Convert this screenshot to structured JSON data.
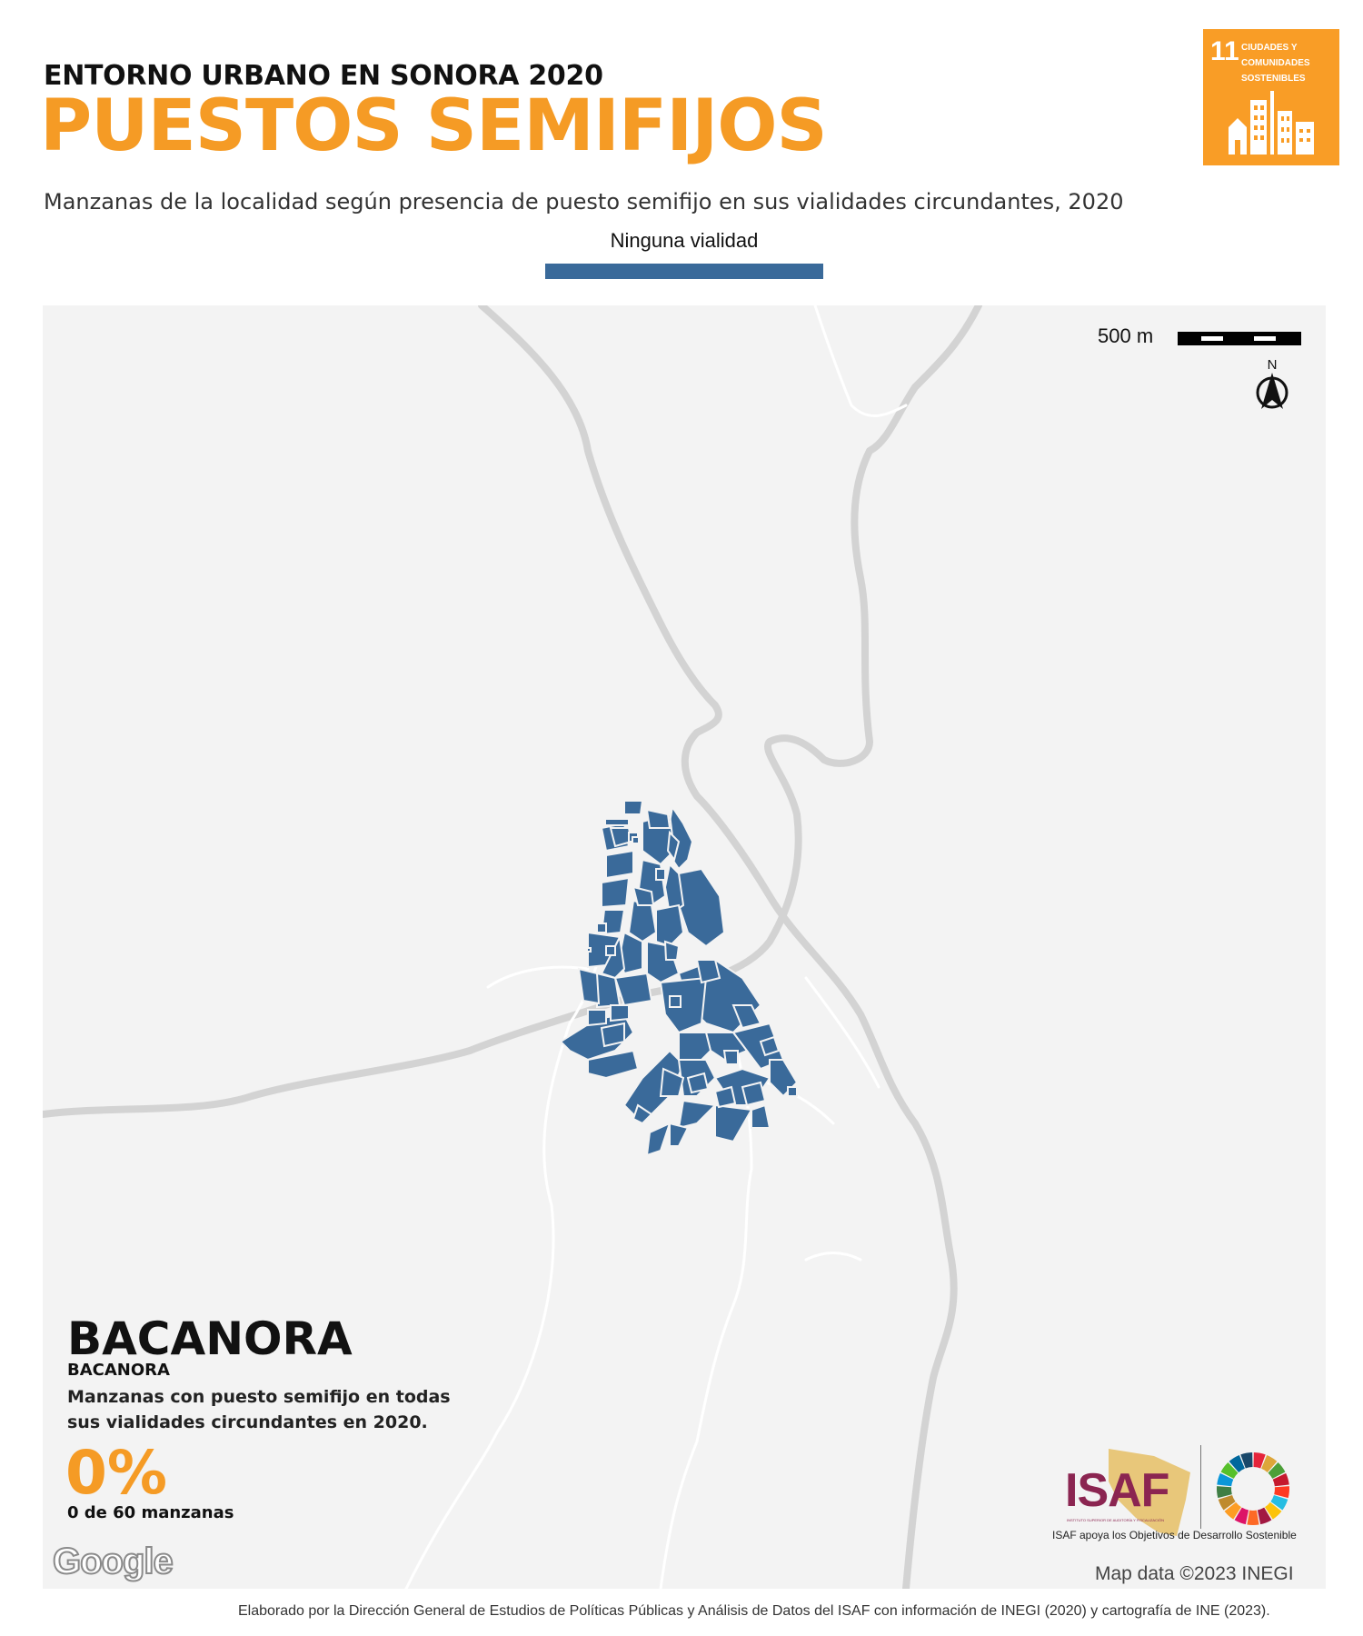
{
  "header": {
    "subtitle": "ENTORNO URBANO EN SONORA 2020",
    "title": "PUESTOS SEMIFIJOS",
    "description": "Manzanas de la localidad según presencia de puesto semifijo en sus vialidades circundantes, 2020"
  },
  "legend": {
    "label": "Ninguna vialidad",
    "color": "#3A6A9A"
  },
  "sdg_badge": {
    "number": "11",
    "text": "CIUDADES Y\nCOMUNIDADES\nSOSTENIBLES",
    "color": "#F99D26"
  },
  "map": {
    "scale_label": "500 m",
    "north_label": "N",
    "block_color": "#3A6A9A",
    "road_color": "#D3D3D3",
    "background_color": "#F3F3F3"
  },
  "locality": {
    "name": "BACANORA",
    "subname": "BACANORA",
    "stat_description": "Manzanas con puesto semifijo en todas sus vialidades circundantes en 2020.",
    "stat_value": "0%",
    "stat_count": "0 de 60 manzanas"
  },
  "branding": {
    "google": "Google",
    "isaf": "ISAF",
    "isaf_fullname": "INSTITUTO SUPERIOR DE AUDITORÍA Y FISCALIZACIÓN",
    "isaf_caption": "ISAF apoya los Objetivos de Desarrollo Sostenible",
    "map_attribution": "Map data ©2023 INEGI",
    "credits": "Elaborado por la Dirección General de Estudios de Políticas Públicas y Análisis de Datos del ISAF con información de INEGI (2020) y cartografía de INE (2023)."
  }
}
